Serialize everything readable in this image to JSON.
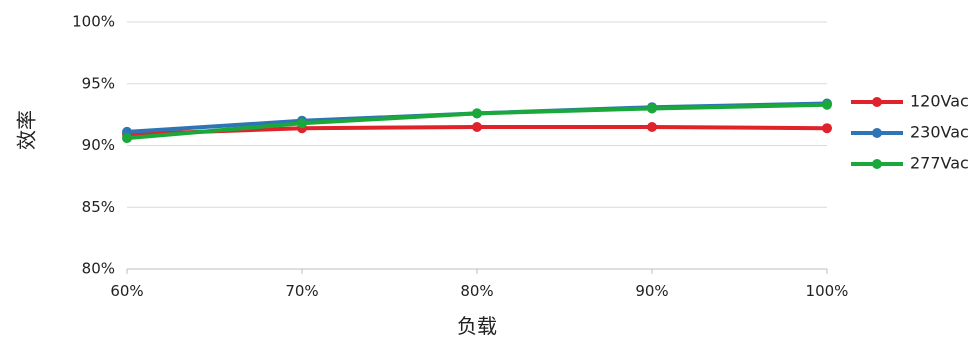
{
  "chart_data": {
    "type": "line",
    "title": "",
    "xlabel": "负载",
    "ylabel": "效率",
    "categories": [
      "60%",
      "70%",
      "80%",
      "90%",
      "100%"
    ],
    "x": [
      60,
      70,
      80,
      90,
      100
    ],
    "xlim": [
      60,
      100
    ],
    "ylim": [
      80,
      100
    ],
    "yticks": [
      80,
      85,
      90,
      95,
      100
    ],
    "ytick_labels": [
      "80%",
      "85%",
      "90%",
      "95%",
      "100%"
    ],
    "grid": "horizontal",
    "legend_position": "right",
    "series": [
      {
        "name": "120Vac",
        "color": "#e0222b",
        "values": [
          90.9,
          91.4,
          91.5,
          91.5,
          91.4
        ]
      },
      {
        "name": "230Vac",
        "color": "#2f75b5",
        "values": [
          91.1,
          92.0,
          92.6,
          93.1,
          93.4
        ]
      },
      {
        "name": "277Vac",
        "color": "#1aa83a",
        "values": [
          90.6,
          91.8,
          92.6,
          93.0,
          93.3
        ]
      }
    ]
  }
}
